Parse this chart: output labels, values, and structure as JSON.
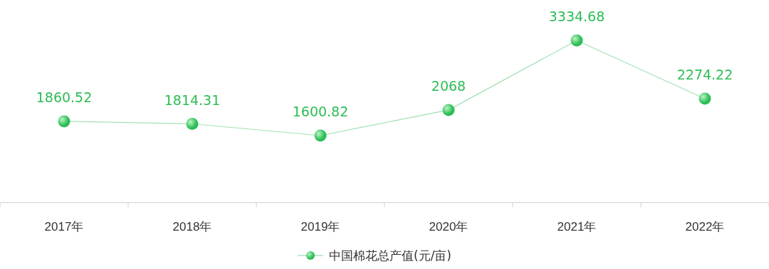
{
  "chart_data": {
    "type": "line",
    "categories": [
      "2017年",
      "2018年",
      "2019年",
      "2020年",
      "2021年",
      "2022年"
    ],
    "series": [
      {
        "name": "中国棉花总产值(元/亩)",
        "color": "#2dbd55",
        "values": [
          1860.52,
          1814.31,
          1600.82,
          2068,
          3334.68,
          2274.22
        ]
      }
    ],
    "data_labels": true,
    "marker": "circle",
    "legend": "bottom",
    "grid": false
  }
}
